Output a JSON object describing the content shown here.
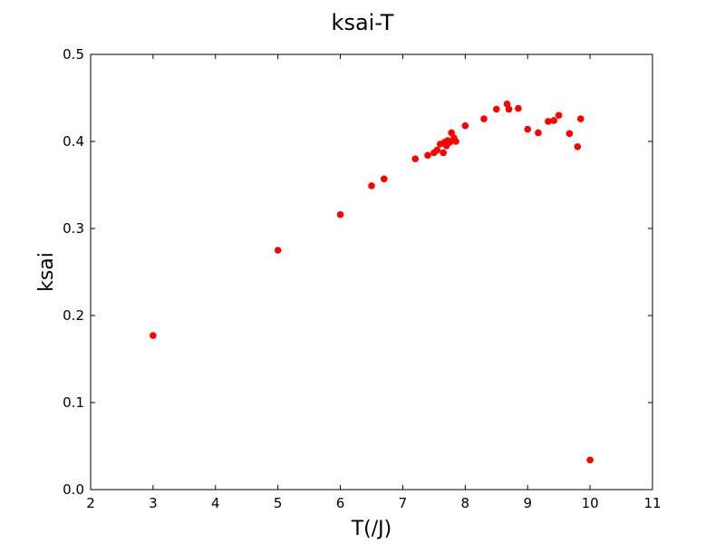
{
  "chart_data": {
    "type": "scatter",
    "title": "ksai-T",
    "xlabel": "T(/J)",
    "ylabel": "ksai",
    "xlim": [
      2,
      11
    ],
    "ylim": [
      0.0,
      0.5
    ],
    "xticks": [
      2,
      3,
      4,
      5,
      6,
      7,
      8,
      9,
      10,
      11
    ],
    "xtick_labels": [
      "2",
      "3",
      "4",
      "5",
      "6",
      "7",
      "8",
      "9",
      "10",
      "11"
    ],
    "yticks": [
      0.0,
      0.1,
      0.2,
      0.3,
      0.4,
      0.5
    ],
    "ytick_labels": [
      "0.0",
      "0.1",
      "0.2",
      "0.3",
      "0.4",
      "0.5"
    ],
    "grid": false,
    "marker_color": "#ff0000",
    "series": [
      {
        "points": [
          {
            "x": 3.0,
            "y": 0.177
          },
          {
            "x": 5.0,
            "y": 0.275
          },
          {
            "x": 6.0,
            "y": 0.316
          },
          {
            "x": 6.5,
            "y": 0.349
          },
          {
            "x": 6.7,
            "y": 0.357
          },
          {
            "x": 7.2,
            "y": 0.38
          },
          {
            "x": 7.4,
            "y": 0.384
          },
          {
            "x": 7.5,
            "y": 0.387
          },
          {
            "x": 7.55,
            "y": 0.39
          },
          {
            "x": 7.6,
            "y": 0.397
          },
          {
            "x": 7.65,
            "y": 0.387
          },
          {
            "x": 7.67,
            "y": 0.399
          },
          {
            "x": 7.7,
            "y": 0.395
          },
          {
            "x": 7.72,
            "y": 0.401
          },
          {
            "x": 7.75,
            "y": 0.399
          },
          {
            "x": 7.78,
            "y": 0.41
          },
          {
            "x": 7.82,
            "y": 0.404
          },
          {
            "x": 7.85,
            "y": 0.4
          },
          {
            "x": 8.0,
            "y": 0.418
          },
          {
            "x": 8.3,
            "y": 0.426
          },
          {
            "x": 8.5,
            "y": 0.437
          },
          {
            "x": 8.67,
            "y": 0.443
          },
          {
            "x": 8.7,
            "y": 0.437
          },
          {
            "x": 8.85,
            "y": 0.438
          },
          {
            "x": 9.0,
            "y": 0.414
          },
          {
            "x": 9.17,
            "y": 0.41
          },
          {
            "x": 9.33,
            "y": 0.423
          },
          {
            "x": 9.42,
            "y": 0.424
          },
          {
            "x": 9.5,
            "y": 0.43
          },
          {
            "x": 9.67,
            "y": 0.409
          },
          {
            "x": 9.8,
            "y": 0.394
          },
          {
            "x": 9.85,
            "y": 0.426
          },
          {
            "x": 10.0,
            "y": 0.034
          }
        ]
      }
    ]
  }
}
